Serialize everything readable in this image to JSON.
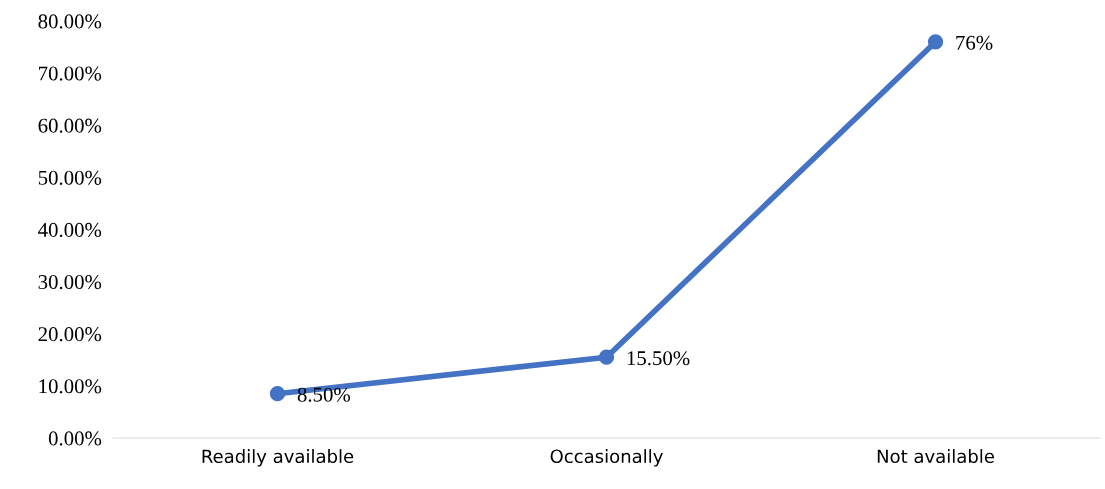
{
  "chart_data": {
    "type": "line",
    "categories": [
      "Readily available",
      "Occasionally",
      "Not available"
    ],
    "series": [
      {
        "color": "#4472c4",
        "values": [
          8.5,
          15.5,
          76
        ],
        "value_labels": [
          "8.50%",
          "15.50%",
          "76%"
        ]
      }
    ],
    "ylim": [
      0,
      80
    ],
    "yticks": [
      {
        "value": 0,
        "label": "0.00%"
      },
      {
        "value": 10,
        "label": "10.00%"
      },
      {
        "value": 20,
        "label": "20.00%"
      },
      {
        "value": 30,
        "label": "30.00%"
      },
      {
        "value": 40,
        "label": "40.00%"
      },
      {
        "value": 50,
        "label": "50.00%"
      },
      {
        "value": 60,
        "label": "60.00%"
      },
      {
        "value": 70,
        "label": "70.00%"
      },
      {
        "value": 80,
        "label": "80.00%"
      }
    ],
    "marker": "circle",
    "line_style": "solid"
  }
}
